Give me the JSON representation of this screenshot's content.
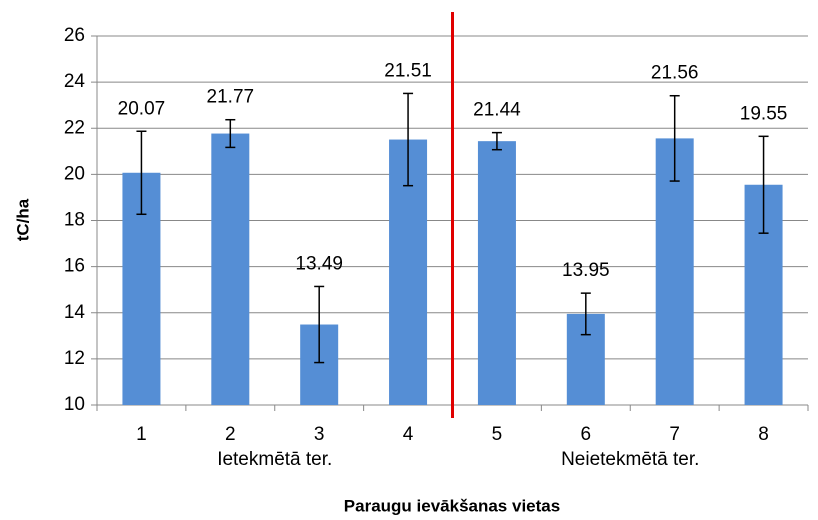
{
  "chart_data": {
    "type": "bar",
    "categories": [
      "1",
      "2",
      "3",
      "4",
      "5",
      "6",
      "7",
      "8"
    ],
    "values": [
      20.07,
      21.77,
      13.49,
      21.51,
      21.44,
      13.95,
      21.56,
      19.55
    ],
    "errors": [
      1.8,
      0.6,
      1.65,
      2.0,
      0.37,
      0.9,
      1.85,
      2.1
    ],
    "color": "#558ed5",
    "ylim": [
      10,
      26
    ],
    "yticks": [
      10,
      12,
      14,
      16,
      18,
      20,
      22,
      24,
      26
    ],
    "grid": true,
    "ylabel": "tC/ha",
    "xlabel": "Paraugu ievākšanas vietas",
    "group_labels": [
      "Ietekmētā ter.",
      "Neietekmētā ter."
    ]
  }
}
